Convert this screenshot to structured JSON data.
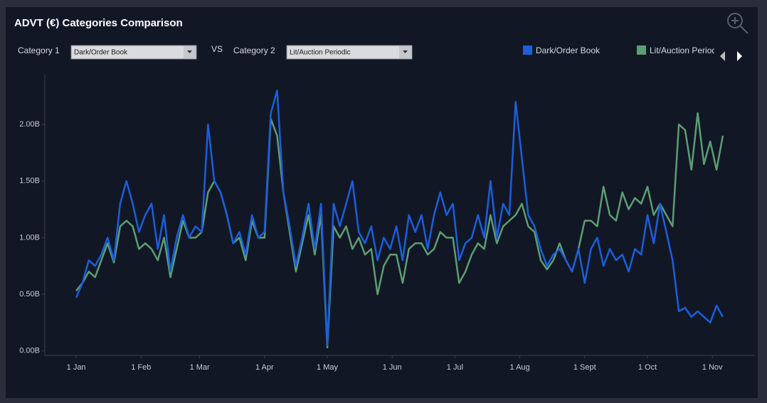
{
  "controls": {
    "category1_label": "Category 1",
    "category1_value": "Dark/Order Book",
    "vs": "VS",
    "category2_label": "Category 2",
    "category2_value": "Lit/Auction Periodic"
  },
  "chart_data": {
    "type": "line",
    "title": "ADVT (€) Categories Comparison",
    "x": [
      0,
      3,
      6,
      9,
      12,
      15,
      18,
      21,
      24,
      27,
      30,
      33,
      36,
      39,
      42,
      45,
      48,
      51,
      54,
      57,
      60,
      63,
      66,
      69,
      72,
      75,
      78,
      81,
      84,
      87,
      90,
      93,
      96,
      99,
      102,
      105,
      108,
      111,
      114,
      117,
      120,
      123,
      126,
      129,
      132,
      135,
      138,
      141,
      144,
      147,
      150,
      153,
      156,
      159,
      162,
      165,
      168,
      171,
      174,
      177,
      180,
      183,
      186,
      189,
      192,
      195,
      198,
      201,
      204,
      207,
      210,
      213,
      216,
      219,
      222,
      225,
      228,
      231,
      234,
      237,
      240,
      243,
      246,
      249,
      252,
      255,
      258,
      261,
      264,
      267,
      270,
      273,
      276,
      279,
      282,
      285,
      288,
      291,
      294,
      297,
      300,
      303,
      306,
      309
    ],
    "series": [
      {
        "name": "Dark/Order Book",
        "color": "#1b5fdb",
        "values": [
          0.47,
          0.6,
          0.8,
          0.75,
          0.85,
          1.0,
          0.8,
          1.3,
          1.5,
          1.3,
          1.05,
          1.2,
          1.3,
          0.9,
          1.2,
          0.7,
          1.0,
          1.2,
          1.0,
          1.1,
          1.05,
          2.0,
          1.5,
          1.4,
          1.2,
          0.95,
          1.05,
          0.85,
          1.2,
          1.0,
          1.05,
          2.1,
          2.3,
          1.4,
          1.1,
          0.75,
          1.0,
          1.3,
          0.9,
          1.3,
          0.05,
          1.3,
          1.1,
          1.3,
          1.5,
          1.05,
          0.95,
          1.1,
          0.8,
          1.0,
          0.9,
          1.1,
          0.8,
          1.2,
          1.05,
          1.2,
          0.9,
          1.2,
          1.4,
          1.2,
          1.3,
          0.8,
          0.95,
          1.0,
          1.2,
          1.0,
          1.5,
          1.0,
          1.3,
          1.2,
          2.2,
          1.7,
          1.2,
          1.1,
          0.9,
          0.75,
          0.85,
          0.9,
          0.8,
          0.7,
          0.9,
          0.6,
          0.9,
          1.0,
          0.75,
          0.9,
          0.8,
          0.85,
          0.7,
          0.9,
          0.85,
          1.2,
          0.95,
          1.3,
          1.05,
          0.8,
          0.35,
          0.38,
          0.3,
          0.35,
          0.3,
          0.25,
          0.4,
          0.3
        ]
      },
      {
        "name": "Lit/Auction Periodic",
        "color": "#5c9e72",
        "values": [
          0.53,
          0.6,
          0.7,
          0.65,
          0.8,
          0.95,
          0.78,
          1.1,
          1.15,
          1.1,
          0.9,
          0.95,
          0.9,
          0.8,
          1.0,
          0.65,
          0.9,
          1.15,
          1.0,
          1.0,
          1.05,
          1.4,
          1.5,
          1.4,
          1.2,
          0.95,
          1.0,
          0.8,
          1.15,
          1.0,
          1.0,
          2.05,
          1.9,
          1.4,
          1.05,
          0.7,
          0.95,
          1.2,
          0.85,
          1.2,
          0.03,
          1.1,
          1.0,
          1.1,
          0.9,
          1.0,
          0.85,
          0.9,
          0.5,
          0.75,
          0.85,
          0.85,
          0.6,
          0.9,
          0.95,
          0.95,
          0.85,
          0.9,
          1.05,
          1.0,
          1.0,
          0.6,
          0.7,
          0.85,
          0.95,
          0.9,
          1.2,
          0.95,
          1.1,
          1.15,
          1.2,
          1.3,
          1.1,
          1.05,
          0.8,
          0.72,
          0.8,
          0.95,
          0.8,
          0.7,
          0.9,
          1.15,
          1.15,
          1.1,
          1.45,
          1.2,
          1.15,
          1.4,
          1.25,
          1.35,
          1.3,
          1.45,
          1.2,
          1.3,
          1.2,
          1.1,
          2.0,
          1.95,
          1.6,
          2.1,
          1.65,
          1.85,
          1.6,
          1.9
        ]
      }
    ],
    "xlim": [
      -15,
      324
    ],
    "xticks": [
      {
        "value": 0,
        "label": "1 Jan"
      },
      {
        "value": 31,
        "label": "1 Feb"
      },
      {
        "value": 59,
        "label": "1 Mar"
      },
      {
        "value": 90,
        "label": "1 Apr"
      },
      {
        "value": 120,
        "label": "1 May"
      },
      {
        "value": 151,
        "label": "1 Jun"
      },
      {
        "value": 181,
        "label": "1 Jul"
      },
      {
        "value": 212,
        "label": "1 Aug"
      },
      {
        "value": 243,
        "label": "1 Sept"
      },
      {
        "value": 273,
        "label": "1 Oct"
      },
      {
        "value": 304,
        "label": "1 Nov"
      }
    ],
    "ylim": [
      -0.04,
      2.44
    ],
    "yticks": [
      {
        "value": 0,
        "label": "0.00B"
      },
      {
        "value": 0.5,
        "label": "0.50B"
      },
      {
        "value": 1,
        "label": "1.00B"
      },
      {
        "value": 1.5,
        "label": "1.50B"
      },
      {
        "value": 2,
        "label": "2.00B"
      }
    ],
    "grid": false
  }
}
